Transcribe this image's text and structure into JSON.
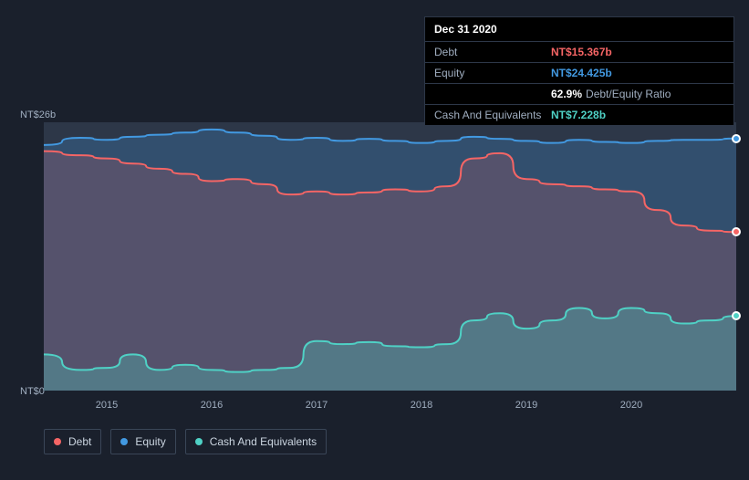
{
  "tooltip": {
    "date": "Dec 31 2020",
    "rows": [
      {
        "label": "Debt",
        "value": "NT$15.367b",
        "color": "#f56565"
      },
      {
        "label": "Equity",
        "value": "NT$24.425b",
        "color": "#4299e1"
      },
      {
        "label": "",
        "value": "62.9%",
        "suffix": "Debt/Equity Ratio",
        "color": "#ffffff"
      },
      {
        "label": "Cash And Equivalents",
        "value": "NT$7.228b",
        "color": "#4fd1c5"
      }
    ]
  },
  "chart": {
    "type": "area",
    "background_color": "#2d3748",
    "page_background": "#1a202c",
    "y_axis": {
      "min": 0,
      "max": 26,
      "top_label": "NT$26b",
      "bottom_label": "NT$0",
      "label_color": "#a0aec0",
      "label_fontsize": 11
    },
    "x_axis": {
      "min": 2014.4,
      "max": 2021.0,
      "ticks": [
        2015,
        2016,
        2017,
        2018,
        2019,
        2020
      ],
      "label_color": "#a0aec0",
      "label_fontsize": 11
    },
    "marker_x": 2021.0,
    "series": [
      {
        "name": "Equity",
        "color": "#4299e1",
        "fill_opacity": 0.25,
        "line_width": 2,
        "data": [
          [
            2014.4,
            23.8
          ],
          [
            2014.75,
            24.5
          ],
          [
            2015.0,
            24.3
          ],
          [
            2015.25,
            24.6
          ],
          [
            2015.5,
            24.8
          ],
          [
            2015.75,
            25.0
          ],
          [
            2016.0,
            25.3
          ],
          [
            2016.25,
            25.0
          ],
          [
            2016.5,
            24.7
          ],
          [
            2016.75,
            24.3
          ],
          [
            2017.0,
            24.5
          ],
          [
            2017.25,
            24.2
          ],
          [
            2017.5,
            24.4
          ],
          [
            2017.75,
            24.2
          ],
          [
            2018.0,
            24.0
          ],
          [
            2018.25,
            24.2
          ],
          [
            2018.5,
            24.6
          ],
          [
            2018.75,
            24.4
          ],
          [
            2019.0,
            24.2
          ],
          [
            2019.25,
            24.0
          ],
          [
            2019.5,
            24.3
          ],
          [
            2019.75,
            24.1
          ],
          [
            2020.0,
            24.0
          ],
          [
            2020.25,
            24.2
          ],
          [
            2020.5,
            24.3
          ],
          [
            2020.75,
            24.3
          ],
          [
            2021.0,
            24.425
          ]
        ]
      },
      {
        "name": "Debt",
        "color": "#f56565",
        "fill_opacity": 0.18,
        "line_width": 2,
        "data": [
          [
            2014.4,
            23.2
          ],
          [
            2014.75,
            22.8
          ],
          [
            2015.0,
            22.5
          ],
          [
            2015.25,
            22.0
          ],
          [
            2015.5,
            21.5
          ],
          [
            2015.75,
            21.0
          ],
          [
            2016.0,
            20.3
          ],
          [
            2016.25,
            20.5
          ],
          [
            2016.5,
            20.0
          ],
          [
            2016.75,
            19.0
          ],
          [
            2017.0,
            19.3
          ],
          [
            2017.25,
            19.0
          ],
          [
            2017.5,
            19.2
          ],
          [
            2017.75,
            19.5
          ],
          [
            2018.0,
            19.3
          ],
          [
            2018.25,
            19.8
          ],
          [
            2018.5,
            22.5
          ],
          [
            2018.75,
            23.0
          ],
          [
            2019.0,
            20.5
          ],
          [
            2019.25,
            20.0
          ],
          [
            2019.5,
            19.8
          ],
          [
            2019.75,
            19.5
          ],
          [
            2020.0,
            19.3
          ],
          [
            2020.25,
            17.5
          ],
          [
            2020.5,
            16.0
          ],
          [
            2020.75,
            15.5
          ],
          [
            2021.0,
            15.367
          ]
        ]
      },
      {
        "name": "Cash And Equivalents",
        "color": "#4fd1c5",
        "fill_opacity": 0.3,
        "line_width": 2,
        "data": [
          [
            2014.4,
            3.5
          ],
          [
            2014.75,
            2.0
          ],
          [
            2015.0,
            2.2
          ],
          [
            2015.25,
            3.5
          ],
          [
            2015.5,
            2.0
          ],
          [
            2015.75,
            2.5
          ],
          [
            2016.0,
            2.0
          ],
          [
            2016.25,
            1.8
          ],
          [
            2016.5,
            2.0
          ],
          [
            2016.75,
            2.2
          ],
          [
            2017.0,
            4.8
          ],
          [
            2017.25,
            4.5
          ],
          [
            2017.5,
            4.7
          ],
          [
            2017.75,
            4.3
          ],
          [
            2018.0,
            4.2
          ],
          [
            2018.25,
            4.5
          ],
          [
            2018.5,
            6.8
          ],
          [
            2018.75,
            7.5
          ],
          [
            2019.0,
            6.0
          ],
          [
            2019.25,
            6.8
          ],
          [
            2019.5,
            8.0
          ],
          [
            2019.75,
            7.0
          ],
          [
            2020.0,
            8.0
          ],
          [
            2020.25,
            7.5
          ],
          [
            2020.5,
            6.5
          ],
          [
            2020.75,
            6.8
          ],
          [
            2021.0,
            7.228
          ]
        ]
      }
    ]
  },
  "legend": {
    "items": [
      {
        "label": "Debt",
        "color": "#f56565"
      },
      {
        "label": "Equity",
        "color": "#4299e1"
      },
      {
        "label": "Cash And Equivalents",
        "color": "#4fd1c5"
      }
    ],
    "border_color": "#3a4658",
    "text_color": "#cbd5e0",
    "fontsize": 12
  }
}
